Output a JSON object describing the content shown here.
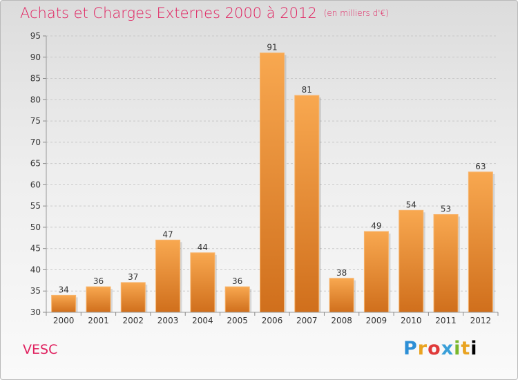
{
  "title": "Achats et Charges Externes 2000 à 2012",
  "subtitle": "(en milliers d'€)",
  "place": "VESC",
  "logo": [
    "P",
    "r",
    "o",
    "x",
    "i",
    "t",
    "i"
  ],
  "colors": {
    "bar": "#f5a04a",
    "bar_dark": "#d3731e",
    "title": "#e0215f",
    "grid": "#c8c8c8"
  },
  "chart_data": {
    "type": "bar",
    "categories": [
      "2000",
      "2001",
      "2002",
      "2003",
      "2004",
      "2005",
      "2006",
      "2007",
      "2008",
      "2009",
      "2010",
      "2011",
      "2012"
    ],
    "values": [
      34,
      36,
      37,
      47,
      44,
      36,
      91,
      81,
      38,
      49,
      54,
      53,
      63
    ],
    "ylim": [
      30,
      95
    ],
    "yticks": [
      30,
      35,
      40,
      45,
      50,
      55,
      60,
      65,
      70,
      75,
      80,
      85,
      90,
      95
    ],
    "grid": true,
    "data_labels": true
  }
}
